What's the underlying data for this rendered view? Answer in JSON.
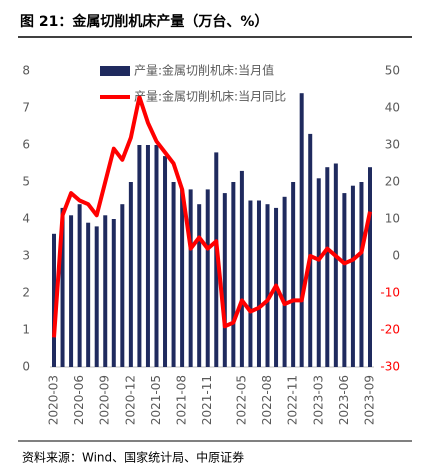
{
  "chart_data": {
    "type": "bar_line",
    "title": "图 21：金属切削机床产量（万台、%）",
    "source": "资料来源：Wind、国家统计局、中原证券",
    "categories": [
      "2020-03",
      null,
      null,
      "2020-06",
      null,
      null,
      "2020-09",
      null,
      null,
      "2020-12",
      null,
      null,
      "2021-05",
      null,
      null,
      "2021-08",
      null,
      null,
      "2021-11",
      null,
      null,
      null,
      "2022-05",
      null,
      null,
      "2022-08",
      null,
      null,
      "2022-11",
      null,
      null,
      "2023-03",
      null,
      null,
      "2023-06",
      null,
      null,
      "2023-09"
    ],
    "series": [
      {
        "name": "产量:金属切削机床:当月值",
        "type": "bar",
        "color": "#1f2a5e",
        "axis": "y",
        "values": [
          3.6,
          4.3,
          4.1,
          4.4,
          3.9,
          3.8,
          4.1,
          4.0,
          4.4,
          5.0,
          6.0,
          6.0,
          6.0,
          5.7,
          5.0,
          4.8,
          4.8,
          4.4,
          4.8,
          5.8,
          4.7,
          5.0,
          5.3,
          4.5,
          4.5,
          4.4,
          4.3,
          4.6,
          5.0,
          7.4,
          6.3,
          5.1,
          5.4,
          5.5,
          4.7,
          4.9,
          5.0,
          5.4
        ]
      },
      {
        "name": "产量:金属切削机床:当月同比",
        "type": "line",
        "color": "#ff0000",
        "axis": "y2",
        "values": [
          -22,
          11,
          17,
          15,
          14,
          11,
          20,
          29,
          26,
          32,
          43,
          36,
          31,
          28,
          25,
          18,
          2,
          5,
          2,
          4,
          -19,
          -18,
          -12,
          -15,
          -14,
          -12,
          -8,
          -13,
          -12,
          -12,
          0,
          -1,
          2,
          0,
          -2,
          -1,
          1,
          12
        ]
      }
    ],
    "ylim": [
      0,
      8
    ],
    "yticks": [
      0,
      1,
      2,
      3,
      4,
      5,
      6,
      7,
      8
    ],
    "y2lim": [
      -30,
      50
    ],
    "y2ticks": [
      -30,
      -20,
      -10,
      0,
      10,
      20,
      30,
      40,
      50
    ],
    "negative_tick_color": "#ff0000",
    "grid": false,
    "legend": "top"
  }
}
